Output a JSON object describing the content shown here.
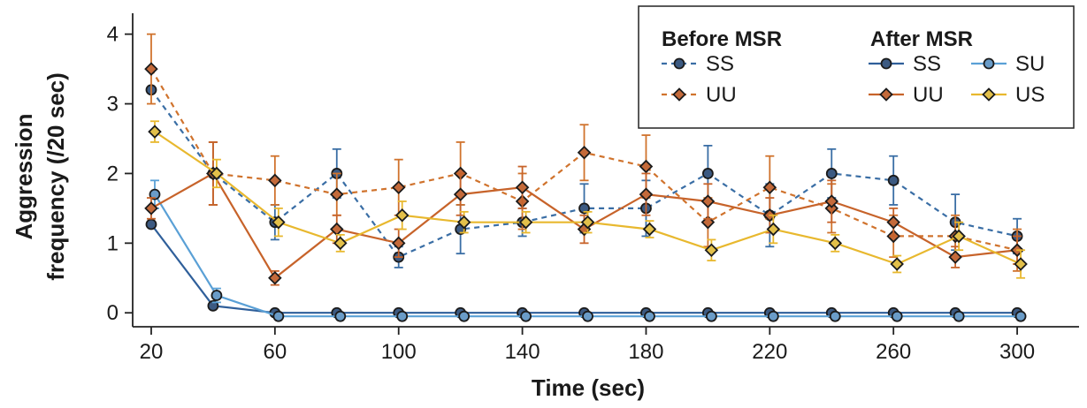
{
  "chart_data": {
    "type": "line",
    "xlabel": "Time (sec)",
    "ylabel_lines": [
      "Aggression",
      "frequency (/20 sec)"
    ],
    "xlim": [
      14,
      320
    ],
    "ylim": [
      -0.2,
      4.3
    ],
    "x_ticks": [
      20,
      60,
      100,
      140,
      180,
      220,
      260,
      300
    ],
    "y_ticks": [
      0,
      1,
      2,
      3,
      4
    ],
    "legend": {
      "before_title": "Before MSR",
      "after_title": "After MSR",
      "before_labels": [
        "SS",
        "UU"
      ],
      "after_labels": [
        "SS",
        "SU",
        "UU",
        "US"
      ]
    },
    "series": [
      {
        "name": "Before SS",
        "group": "Before MSR",
        "label": "SS",
        "color": "#3a6ea5",
        "fill": "#3c5a82",
        "marker": "circle",
        "dash": true,
        "offset": 0,
        "x": [
          20,
          40,
          60,
          80,
          100,
          120,
          140,
          160,
          180,
          200,
          220,
          240,
          260,
          280,
          300
        ],
        "y": [
          3.2,
          2.0,
          1.3,
          2.0,
          0.8,
          1.2,
          1.3,
          1.5,
          1.5,
          2.0,
          1.4,
          2.0,
          1.9,
          1.3,
          1.1
        ],
        "err": [
          0.0,
          0.45,
          0.25,
          0.35,
          0.15,
          0.35,
          0.2,
          0.35,
          0.4,
          0.4,
          0.45,
          0.35,
          0.35,
          0.4,
          0.25
        ]
      },
      {
        "name": "Before UU",
        "group": "Before MSR",
        "label": "UU",
        "color": "#d0732d",
        "fill": "#c46a3a",
        "marker": "diamond",
        "dash": true,
        "offset": 0,
        "x": [
          20,
          40,
          60,
          80,
          100,
          120,
          140,
          160,
          180,
          200,
          220,
          240,
          260,
          280,
          300
        ],
        "y": [
          3.5,
          2.0,
          1.9,
          1.7,
          1.8,
          2.0,
          1.6,
          2.3,
          2.1,
          1.3,
          1.8,
          1.5,
          1.1,
          1.1,
          0.9
        ],
        "err": [
          0.5,
          0.45,
          0.35,
          0.3,
          0.4,
          0.45,
          0.4,
          0.4,
          0.45,
          0.35,
          0.45,
          0.35,
          0.3,
          0.3,
          0.3
        ]
      },
      {
        "name": "After SS",
        "group": "After MSR",
        "label": "SS",
        "color": "#2f5f9a",
        "fill": "#3c5a82",
        "marker": "circle",
        "dash": false,
        "offset": 0,
        "x": [
          20,
          40,
          60,
          80,
          100,
          120,
          140,
          160,
          180,
          200,
          220,
          240,
          260,
          280,
          300
        ],
        "y": [
          1.27,
          0.1,
          0.0,
          0.0,
          0.0,
          0.0,
          0.0,
          0.0,
          0.0,
          0.0,
          0.0,
          0.0,
          0.0,
          0.0,
          0.0
        ],
        "err": [
          0,
          0,
          0,
          0,
          0,
          0,
          0,
          0,
          0,
          0,
          0,
          0,
          0,
          0,
          0
        ]
      },
      {
        "name": "After SU",
        "group": "After MSR",
        "label": "SU",
        "color": "#5aa0d6",
        "fill": "#6a9cc8",
        "marker": "circle",
        "dash": false,
        "offset": 4,
        "x": [
          20,
          40,
          60,
          80,
          100,
          120,
          140,
          160,
          180,
          200,
          220,
          240,
          260,
          280,
          300
        ],
        "y": [
          1.7,
          0.25,
          -0.05,
          -0.05,
          -0.05,
          -0.05,
          -0.05,
          -0.05,
          -0.05,
          -0.05,
          -0.05,
          -0.05,
          -0.05,
          -0.05,
          -0.05
        ],
        "err": [
          0.2,
          0.1,
          0,
          0,
          0,
          0,
          0,
          0,
          0,
          0,
          0,
          0,
          0,
          0,
          0
        ]
      },
      {
        "name": "After UU",
        "group": "After MSR",
        "label": "UU",
        "color": "#c7632a",
        "fill": "#c46a3a",
        "marker": "diamond",
        "dash": false,
        "offset": 0,
        "x": [
          20,
          40,
          60,
          80,
          100,
          120,
          140,
          160,
          180,
          200,
          220,
          240,
          260,
          280,
          300
        ],
        "y": [
          1.5,
          2.0,
          0.5,
          1.2,
          1.0,
          1.7,
          1.8,
          1.2,
          1.7,
          1.6,
          1.4,
          1.6,
          1.3,
          0.8,
          0.9
        ],
        "err": [
          0.15,
          0.45,
          0.1,
          0.2,
          0.2,
          0.3,
          0.3,
          0.2,
          0.3,
          0.25,
          0.25,
          0.3,
          0.2,
          0.15,
          0.2
        ]
      },
      {
        "name": "After US",
        "group": "After MSR",
        "label": "US",
        "color": "#e8b82e",
        "fill": "#e3c04a",
        "marker": "diamond",
        "dash": false,
        "offset": 4,
        "x": [
          20,
          40,
          60,
          80,
          100,
          120,
          140,
          160,
          180,
          200,
          220,
          240,
          260,
          280,
          300
        ],
        "y": [
          2.6,
          2.0,
          1.3,
          1.0,
          1.4,
          1.3,
          1.3,
          1.3,
          1.2,
          0.9,
          1.2,
          1.0,
          0.7,
          1.1,
          0.7
        ],
        "err": [
          0.15,
          0.2,
          0.2,
          0.12,
          0.2,
          0.15,
          0.15,
          0.15,
          0.12,
          0.15,
          0.2,
          0.12,
          0.12,
          0.2,
          0.2
        ]
      }
    ]
  }
}
